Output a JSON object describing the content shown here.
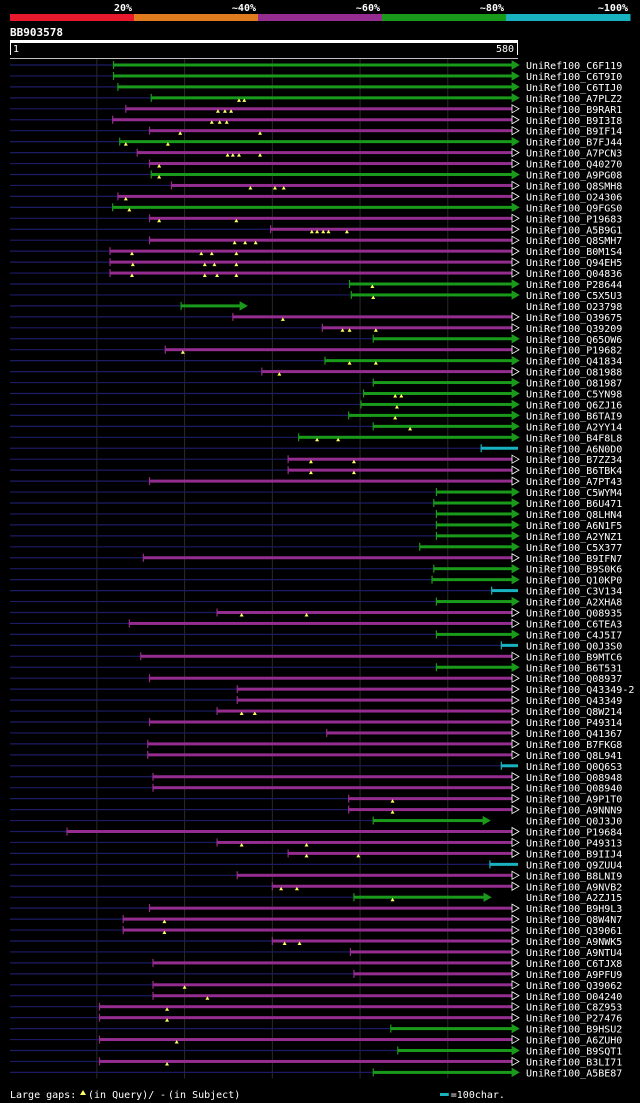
{
  "chart_data": {
    "type": "alignment-overview",
    "query_id": "BB903578",
    "query_start": "1",
    "query_end": "580",
    "query_length": 580,
    "identity_legend": [
      {
        "label": "20%",
        "color": "#e8192c"
      },
      {
        "label": "~40%",
        "color": "#e07c1e"
      },
      {
        "label": "~60%",
        "color": "#952c8f"
      },
      {
        "label": "~80%",
        "color": "#1a9a1a"
      },
      {
        "label": "~100%",
        "color": "#19b2c0"
      }
    ],
    "footer": {
      "large_gaps_label": "Large gaps:",
      "in_query_text": "(in Query)/",
      "gap_dash": "-",
      "in_subject_text": "(in Subject)",
      "scale_text": "=100char.",
      "scale_chars": 100
    },
    "hits": [
      {
        "id": "UniRef100_C6F119",
        "start": 119,
        "end": 580,
        "color": "green",
        "arrow": true,
        "marks": []
      },
      {
        "id": "UniRef100_C6T9I0",
        "start": 119,
        "end": 580,
        "color": "green",
        "arrow": true,
        "marks": []
      },
      {
        "id": "UniRef100_C6TIJ0",
        "start": 124,
        "end": 580,
        "color": "green",
        "arrow": true,
        "marks": []
      },
      {
        "id": "UniRef100_A7PLZ2",
        "start": 162,
        "end": 580,
        "color": "green",
        "arrow": true,
        "marks": [
          262,
          268
        ]
      },
      {
        "id": "UniRef100_B9RAR1",
        "start": 133,
        "end": 580,
        "color": "purple",
        "arrow": true,
        "marks": [
          238,
          246,
          253
        ]
      },
      {
        "id": "UniRef100_B9I3I8",
        "start": 118,
        "end": 580,
        "color": "purple",
        "arrow": true,
        "marks": [
          231,
          240,
          248
        ]
      },
      {
        "id": "UniRef100_B9IF14",
        "start": 160,
        "end": 580,
        "color": "purple",
        "arrow": true,
        "marks": [
          195,
          286
        ]
      },
      {
        "id": "UniRef100_B7FJ44",
        "start": 126,
        "end": 580,
        "color": "green",
        "arrow": true,
        "marks": [
          133,
          181
        ]
      },
      {
        "id": "UniRef100_A7PCN3",
        "start": 146,
        "end": 580,
        "color": "purple",
        "arrow": true,
        "marks": [
          249,
          255,
          262,
          286
        ]
      },
      {
        "id": "UniRef100_Q40270",
        "start": 160,
        "end": 580,
        "color": "purple",
        "arrow": true,
        "marks": [
          171
        ]
      },
      {
        "id": "UniRef100_A9PG08",
        "start": 162,
        "end": 580,
        "color": "green",
        "arrow": true,
        "marks": [
          171
        ]
      },
      {
        "id": "UniRef100_Q8SMH8",
        "start": 185,
        "end": 580,
        "color": "purple",
        "arrow": true,
        "marks": [
          275,
          303,
          313
        ]
      },
      {
        "id": "UniRef100_O24306",
        "start": 124,
        "end": 580,
        "color": "purple",
        "arrow": true,
        "marks": [
          133
        ]
      },
      {
        "id": "UniRef100_Q9FGS0",
        "start": 118,
        "end": 580,
        "color": "green",
        "arrow": true,
        "marks": [
          137
        ]
      },
      {
        "id": "UniRef100_P19683",
        "start": 160,
        "end": 580,
        "color": "purple",
        "arrow": true,
        "marks": [
          171,
          259
        ]
      },
      {
        "id": "UniRef100_A5B9G1",
        "start": 298,
        "end": 580,
        "color": "purple",
        "arrow": true,
        "marks": [
          345,
          351,
          358,
          364,
          385
        ]
      },
      {
        "id": "UniRef100_Q8SMH7",
        "start": 160,
        "end": 580,
        "color": "purple",
        "arrow": true,
        "marks": [
          257,
          269,
          281
        ]
      },
      {
        "id": "UniRef100_B0M1S4",
        "start": 115,
        "end": 580,
        "color": "purple",
        "arrow": true,
        "marks": [
          140,
          219,
          231,
          259
        ]
      },
      {
        "id": "UniRef100_Q94EH5",
        "start": 115,
        "end": 580,
        "color": "purple",
        "arrow": true,
        "marks": [
          141,
          223,
          234,
          259
        ]
      },
      {
        "id": "UniRef100_Q04836",
        "start": 115,
        "end": 580,
        "color": "purple",
        "arrow": true,
        "marks": [
          140,
          223,
          237,
          259
        ]
      },
      {
        "id": "UniRef100_P28644",
        "start": 388,
        "end": 580,
        "color": "green",
        "arrow": true,
        "marks": [
          414
        ]
      },
      {
        "id": "UniRef100_C5X5U3",
        "start": 390,
        "end": 580,
        "color": "green",
        "arrow": true,
        "marks": [
          415
        ]
      },
      {
        "id": "UniRef100_O23798",
        "start": 196,
        "end": 270,
        "color": "green",
        "arrow": true,
        "marks": []
      },
      {
        "id": "UniRef100_Q39675",
        "start": 255,
        "end": 580,
        "color": "purple",
        "arrow": true,
        "marks": [
          312
        ]
      },
      {
        "id": "UniRef100_Q39209",
        "start": 357,
        "end": 580,
        "color": "purple",
        "arrow": true,
        "marks": [
          380,
          388,
          418
        ]
      },
      {
        "id": "UniRef100_Q65OW6",
        "start": 415,
        "end": 580,
        "color": "green",
        "arrow": true,
        "marks": []
      },
      {
        "id": "UniRef100_P19682",
        "start": 178,
        "end": 580,
        "color": "purple",
        "arrow": true,
        "marks": [
          198
        ]
      },
      {
        "id": "UniRef100_Q41834",
        "start": 360,
        "end": 580,
        "color": "green",
        "arrow": true,
        "marks": [
          388,
          418
        ]
      },
      {
        "id": "UniRef100_O81988",
        "start": 288,
        "end": 580,
        "color": "purple",
        "arrow": true,
        "marks": [
          308
        ]
      },
      {
        "id": "UniRef100_O81987",
        "start": 415,
        "end": 580,
        "color": "green",
        "arrow": true,
        "marks": []
      },
      {
        "id": "UniRef100_C5YN98",
        "start": 404,
        "end": 580,
        "color": "green",
        "arrow": true,
        "marks": [
          440,
          447
        ]
      },
      {
        "id": "UniRef100_Q6ZJ16",
        "start": 401,
        "end": 580,
        "color": "green",
        "arrow": true,
        "marks": [
          442
        ]
      },
      {
        "id": "UniRef100_B6TAI9",
        "start": 387,
        "end": 580,
        "color": "green",
        "arrow": true,
        "marks": [
          440
        ]
      },
      {
        "id": "UniRef100_A2YY14",
        "start": 415,
        "end": 580,
        "color": "green",
        "arrow": true,
        "marks": [
          457
        ]
      },
      {
        "id": "UniRef100_B4F8L8",
        "start": 330,
        "end": 580,
        "color": "green",
        "arrow": true,
        "marks": [
          351,
          375
        ]
      },
      {
        "id": "UniRef100_A6N0D0",
        "start": 538,
        "end": 580,
        "color": "cyan",
        "arrow": false,
        "marks": []
      },
      {
        "id": "UniRef100_B7ZZ34",
        "start": 318,
        "end": 580,
        "color": "purple",
        "arrow": true,
        "marks": [
          344,
          393
        ]
      },
      {
        "id": "UniRef100_B6TBK4",
        "start": 318,
        "end": 580,
        "color": "purple",
        "arrow": true,
        "marks": [
          344,
          393
        ]
      },
      {
        "id": "UniRef100_A7PT43",
        "start": 160,
        "end": 580,
        "color": "purple",
        "arrow": true,
        "marks": []
      },
      {
        "id": "UniRef100_C5WYM4",
        "start": 487,
        "end": 580,
        "color": "green",
        "arrow": true,
        "marks": []
      },
      {
        "id": "UniRef100_B6U471",
        "start": 484,
        "end": 580,
        "color": "green",
        "arrow": true,
        "marks": []
      },
      {
        "id": "UniRef100_Q8LHN4",
        "start": 487,
        "end": 580,
        "color": "green",
        "arrow": true,
        "marks": []
      },
      {
        "id": "UniRef100_A6N1F5",
        "start": 487,
        "end": 580,
        "color": "green",
        "arrow": true,
        "marks": []
      },
      {
        "id": "UniRef100_A2YNZ1",
        "start": 487,
        "end": 580,
        "color": "green",
        "arrow": true,
        "marks": []
      },
      {
        "id": "UniRef100_C5X377",
        "start": 468,
        "end": 580,
        "color": "green",
        "arrow": true,
        "marks": []
      },
      {
        "id": "UniRef100_B9IFN7",
        "start": 153,
        "end": 580,
        "color": "purple",
        "arrow": true,
        "marks": []
      },
      {
        "id": "UniRef100_B9S0K6",
        "start": 484,
        "end": 580,
        "color": "green",
        "arrow": true,
        "marks": []
      },
      {
        "id": "UniRef100_Q10KP0",
        "start": 482,
        "end": 580,
        "color": "green",
        "arrow": true,
        "marks": []
      },
      {
        "id": "UniRef100_C3V134",
        "start": 550,
        "end": 580,
        "color": "cyan",
        "arrow": false,
        "marks": []
      },
      {
        "id": "UniRef100_A2XHA8",
        "start": 487,
        "end": 580,
        "color": "green",
        "arrow": true,
        "marks": []
      },
      {
        "id": "UniRef100_Q08935",
        "start": 237,
        "end": 580,
        "color": "purple",
        "arrow": true,
        "marks": [
          265,
          339
        ]
      },
      {
        "id": "UniRef100_C6TEA3",
        "start": 137,
        "end": 580,
        "color": "purple",
        "arrow": true,
        "marks": []
      },
      {
        "id": "UniRef100_C4J5I7",
        "start": 487,
        "end": 580,
        "color": "green",
        "arrow": true,
        "marks": []
      },
      {
        "id": "UniRef100_Q0J3S0",
        "start": 561,
        "end": 580,
        "color": "cyan",
        "arrow": false,
        "marks": []
      },
      {
        "id": "UniRef100_B9MTC6",
        "start": 150,
        "end": 580,
        "color": "purple",
        "arrow": true,
        "marks": []
      },
      {
        "id": "UniRef100_B6T531",
        "start": 487,
        "end": 580,
        "color": "green",
        "arrow": true,
        "marks": []
      },
      {
        "id": "UniRef100_Q08937",
        "start": 160,
        "end": 580,
        "color": "purple",
        "arrow": true,
        "marks": []
      },
      {
        "id": "UniRef100_Q43349-2",
        "start": 260,
        "end": 580,
        "color": "purple",
        "arrow": true,
        "marks": []
      },
      {
        "id": "UniRef100_Q43349",
        "start": 260,
        "end": 580,
        "color": "purple",
        "arrow": true,
        "marks": []
      },
      {
        "id": "UniRef100_Q8W214",
        "start": 237,
        "end": 580,
        "color": "purple",
        "arrow": true,
        "marks": [
          265,
          280
        ]
      },
      {
        "id": "UniRef100_P49314",
        "start": 160,
        "end": 580,
        "color": "purple",
        "arrow": true,
        "marks": []
      },
      {
        "id": "UniRef100_Q41367",
        "start": 362,
        "end": 580,
        "color": "purple",
        "arrow": true,
        "marks": []
      },
      {
        "id": "UniRef100_B7FKG8",
        "start": 158,
        "end": 580,
        "color": "purple",
        "arrow": true,
        "marks": []
      },
      {
        "id": "UniRef100_Q8L941",
        "start": 158,
        "end": 580,
        "color": "purple",
        "arrow": true,
        "marks": []
      },
      {
        "id": "UniRef100_Q0Q6S3",
        "start": 561,
        "end": 580,
        "color": "cyan",
        "arrow": false,
        "marks": []
      },
      {
        "id": "UniRef100_Q08948",
        "start": 164,
        "end": 580,
        "color": "purple",
        "arrow": true,
        "marks": []
      },
      {
        "id": "UniRef100_Q08940",
        "start": 164,
        "end": 580,
        "color": "purple",
        "arrow": true,
        "marks": []
      },
      {
        "id": "UniRef100_A9P1T0",
        "start": 387,
        "end": 580,
        "color": "purple",
        "arrow": true,
        "marks": [
          437
        ]
      },
      {
        "id": "UniRef100_A9NNN9",
        "start": 387,
        "end": 580,
        "color": "purple",
        "arrow": true,
        "marks": [
          437
        ]
      },
      {
        "id": "UniRef100_Q0J3J0",
        "start": 415,
        "end": 547,
        "color": "green",
        "arrow": true,
        "marks": []
      },
      {
        "id": "UniRef100_P19684",
        "start": 66,
        "end": 580,
        "color": "purple",
        "arrow": true,
        "marks": []
      },
      {
        "id": "UniRef100_P49313",
        "start": 237,
        "end": 580,
        "color": "purple",
        "arrow": true,
        "marks": [
          265,
          339
        ]
      },
      {
        "id": "UniRef100_B9IIJ4",
        "start": 318,
        "end": 580,
        "color": "purple",
        "arrow": true,
        "marks": [
          339,
          398
        ]
      },
      {
        "id": "UniRef100_Q9ZUU4",
        "start": 548,
        "end": 580,
        "color": "cyan",
        "arrow": false,
        "marks": []
      },
      {
        "id": "UniRef100_B8LNI9",
        "start": 260,
        "end": 580,
        "color": "purple",
        "arrow": true,
        "marks": []
      },
      {
        "id": "UniRef100_A9NVB2",
        "start": 300,
        "end": 580,
        "color": "purple",
        "arrow": true,
        "marks": [
          310,
          328
        ]
      },
      {
        "id": "UniRef100_A2ZJ15",
        "start": 393,
        "end": 548,
        "color": "green",
        "arrow": true,
        "marks": [
          437
        ]
      },
      {
        "id": "UniRef100_B9H9L3",
        "start": 160,
        "end": 580,
        "color": "purple",
        "arrow": true,
        "marks": []
      },
      {
        "id": "UniRef100_Q8W4N7",
        "start": 130,
        "end": 580,
        "color": "purple",
        "arrow": true,
        "marks": [
          177
        ]
      },
      {
        "id": "UniRef100_Q39061",
        "start": 130,
        "end": 580,
        "color": "purple",
        "arrow": true,
        "marks": [
          177
        ]
      },
      {
        "id": "UniRef100_A9NWK5",
        "start": 300,
        "end": 580,
        "color": "purple",
        "arrow": true,
        "marks": [
          314,
          331
        ]
      },
      {
        "id": "UniRef100_A9NTU4",
        "start": 389,
        "end": 580,
        "color": "purple",
        "arrow": true,
        "marks": []
      },
      {
        "id": "UniRef100_C6TJX8",
        "start": 164,
        "end": 580,
        "color": "purple",
        "arrow": true,
        "marks": []
      },
      {
        "id": "UniRef100_A9PFU9",
        "start": 393,
        "end": 580,
        "color": "purple",
        "arrow": true,
        "marks": []
      },
      {
        "id": "UniRef100_Q39062",
        "start": 164,
        "end": 580,
        "color": "purple",
        "arrow": true,
        "marks": [
          200
        ]
      },
      {
        "id": "UniRef100_O04240",
        "start": 164,
        "end": 580,
        "color": "purple",
        "arrow": true,
        "marks": [
          226
        ]
      },
      {
        "id": "UniRef100_C8Z953",
        "start": 103,
        "end": 580,
        "color": "purple",
        "arrow": true,
        "marks": [
          180
        ]
      },
      {
        "id": "UniRef100_P27476",
        "start": 103,
        "end": 580,
        "color": "purple",
        "arrow": true,
        "marks": [
          180
        ]
      },
      {
        "id": "UniRef100_B9HSU2",
        "start": 435,
        "end": 580,
        "color": "green",
        "arrow": true,
        "marks": []
      },
      {
        "id": "UniRef100_A6ZUH0",
        "start": 103,
        "end": 580,
        "color": "purple",
        "arrow": true,
        "marks": [
          191
        ]
      },
      {
        "id": "UniRef100_B9SQT1",
        "start": 443,
        "end": 580,
        "color": "green",
        "arrow": true,
        "marks": []
      },
      {
        "id": "UniRef100_B3LI71",
        "start": 103,
        "end": 580,
        "color": "purple",
        "arrow": true,
        "marks": [
          180
        ]
      },
      {
        "id": "UniRef100_A5BE87",
        "start": 415,
        "end": 580,
        "color": "green",
        "arrow": true,
        "marks": []
      }
    ]
  }
}
